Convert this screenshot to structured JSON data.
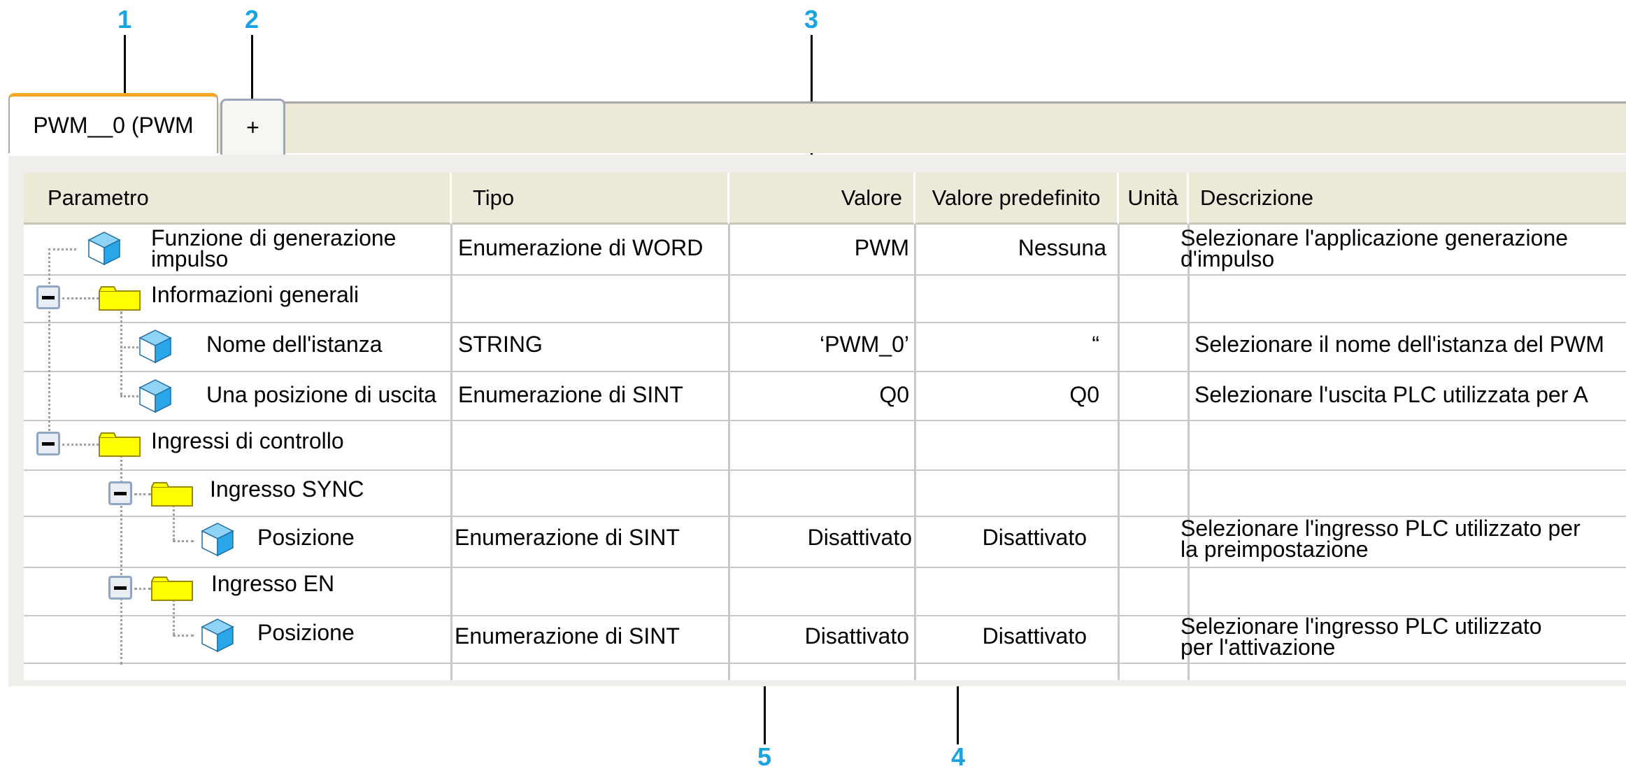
{
  "callouts": [
    "1",
    "2",
    "3",
    "4",
    "5"
  ],
  "tabs": [
    {
      "label": "PWM__0 (PWM",
      "active": true
    },
    {
      "label": "+",
      "active": false
    }
  ],
  "columns": [
    "Parametro",
    "Tipo",
    "Valore",
    "Valore predefinito",
    "Unità",
    "Descrizione"
  ],
  "rows": [
    {
      "name": "Funzione di generazione impulso",
      "type": "Enumerazione di WORD",
      "value": "PWM",
      "default": "Nessuna",
      "unit": "",
      "description": "Selezionare l'applicazione generazione d'impulso",
      "icon": "parameter-cube-icon"
    },
    {
      "name": "Informazioni generali",
      "type": "",
      "value": "",
      "default": "",
      "unit": "",
      "description": "",
      "icon": "folder-icon"
    },
    {
      "name": "Nome dell'istanza",
      "type": "STRING",
      "value": "‘PWM_0’",
      "default": "“",
      "unit": "",
      "description": "Selezionare il nome dell'istanza del PWM",
      "icon": "parameter-cube-icon"
    },
    {
      "name": "Una posizione di uscita",
      "type": "Enumerazione di SINT",
      "value": "Q0",
      "default": "Q0",
      "unit": "",
      "description": "Selezionare l'uscita PLC utilizzata per A",
      "icon": "parameter-cube-icon"
    },
    {
      "name": "Ingressi di controllo",
      "type": "",
      "value": "",
      "default": "",
      "unit": "",
      "description": "",
      "icon": "folder-icon"
    },
    {
      "name": "Ingresso SYNC",
      "type": "",
      "value": "",
      "default": "",
      "unit": "",
      "description": "",
      "icon": "folder-icon"
    },
    {
      "name": "Posizione",
      "type": "Enumerazione di SINT",
      "value": "Disattivato",
      "default": "Disattivato",
      "unit": "",
      "description": "Selezionare l'ingresso PLC utilizzato per la preimpostazione",
      "icon": "parameter-cube-icon"
    },
    {
      "name": "Ingresso EN",
      "type": "",
      "value": "",
      "default": "",
      "unit": "",
      "description": "",
      "icon": "folder-icon"
    },
    {
      "name": "Posizione",
      "type": "Enumerazione di SINT",
      "value": "Disattivato",
      "default": "Disattivato",
      "unit": "",
      "description": "Selezionare l'ingresso PLC utilizzato per l'attivazione",
      "icon": "parameter-cube-icon"
    }
  ],
  "colors": {
    "callout": "#1aa3e0",
    "active_tab_accent": "#f5a623",
    "folder": "#ffff00",
    "cube": "#2aa7e8",
    "header_bg": "#ece9d8"
  }
}
